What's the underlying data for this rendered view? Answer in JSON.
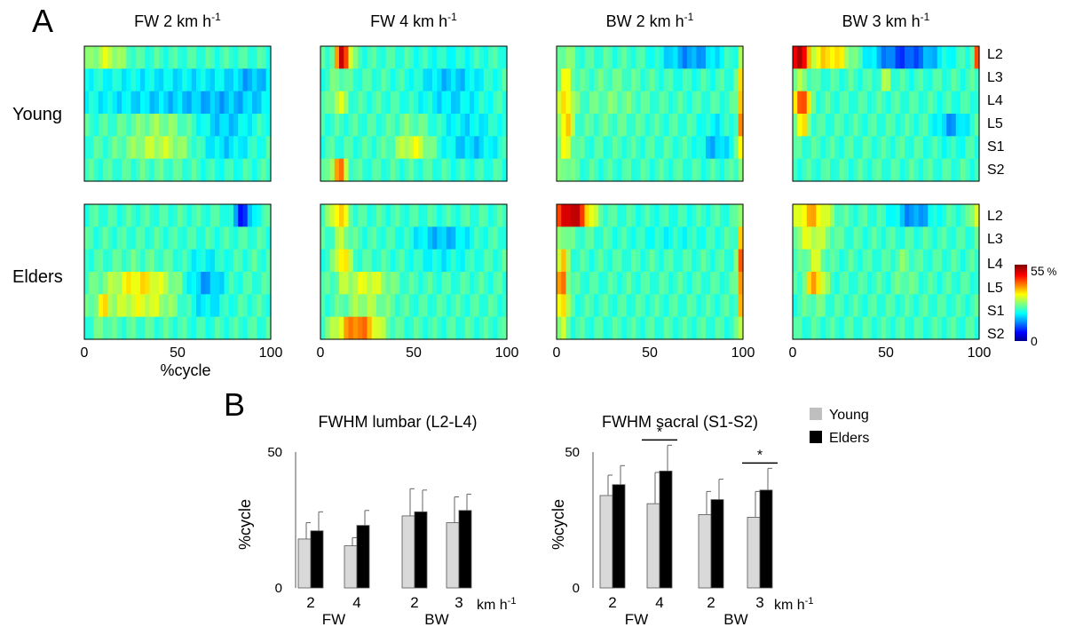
{
  "panel_labels": {
    "a": "A",
    "b": "B"
  },
  "heatmaps": {
    "columns": [
      {
        "title": "FW 2 km h",
        "title_sup": "-1"
      },
      {
        "title": "FW 4 km h",
        "title_sup": "-1"
      },
      {
        "title": "BW 2 km h",
        "title_sup": "-1"
      },
      {
        "title": "BW 3 km h",
        "title_sup": "-1"
      }
    ],
    "rows": [
      "Young",
      "Elders"
    ],
    "segments": [
      "L2",
      "L3",
      "L4",
      "L5",
      "S1",
      "S2"
    ],
    "x_ticks": [
      "0",
      "50",
      "100"
    ],
    "xlabel": "%cycle",
    "colorbar": {
      "max_label": "55",
      "unit": "%",
      "min_label": "0",
      "max": 55,
      "min": 0
    }
  },
  "chart_data": [
    {
      "type": "bar",
      "title": "FWHM lumbar (L2-L4)",
      "ylabel": "%cycle",
      "ylim": [
        0,
        50
      ],
      "yticks": [
        "0",
        "50"
      ],
      "categories": [
        "2",
        "4",
        "2",
        "3"
      ],
      "groups": [
        "FW",
        "BW"
      ],
      "unit": "km h",
      "unit_sup": "-1",
      "series": [
        {
          "name": "Young",
          "color": "#d9d9d9",
          "values": [
            18,
            15.5,
            26.5,
            24
          ],
          "errors": [
            6,
            3,
            10,
            9.5
          ]
        },
        {
          "name": "Elders",
          "color": "#000000",
          "values": [
            21,
            23,
            28,
            28.5
          ],
          "errors": [
            7,
            5.5,
            8,
            6
          ]
        }
      ],
      "significance": []
    },
    {
      "type": "bar",
      "title": "FWHM sacral (S1-S2)",
      "ylabel": "%cycle",
      "ylim": [
        0,
        50
      ],
      "yticks": [
        "0",
        "50"
      ],
      "categories": [
        "2",
        "4",
        "2",
        "3"
      ],
      "groups": [
        "FW",
        "BW"
      ],
      "unit": "km h",
      "unit_sup": "-1",
      "series": [
        {
          "name": "Young",
          "color": "#d9d9d9",
          "values": [
            34,
            31,
            27,
            26
          ],
          "errors": [
            7.5,
            11.5,
            8.5,
            9.5
          ]
        },
        {
          "name": "Elders",
          "color": "#000000",
          "values": [
            38,
            43,
            32.5,
            36
          ],
          "errors": [
            7,
            9.5,
            7.5,
            8
          ]
        }
      ],
      "significance": [
        {
          "category_index": 1,
          "label": "*"
        },
        {
          "category_index": 3,
          "label": "*"
        }
      ]
    }
  ],
  "legend": [
    "Young",
    "Elders"
  ]
}
